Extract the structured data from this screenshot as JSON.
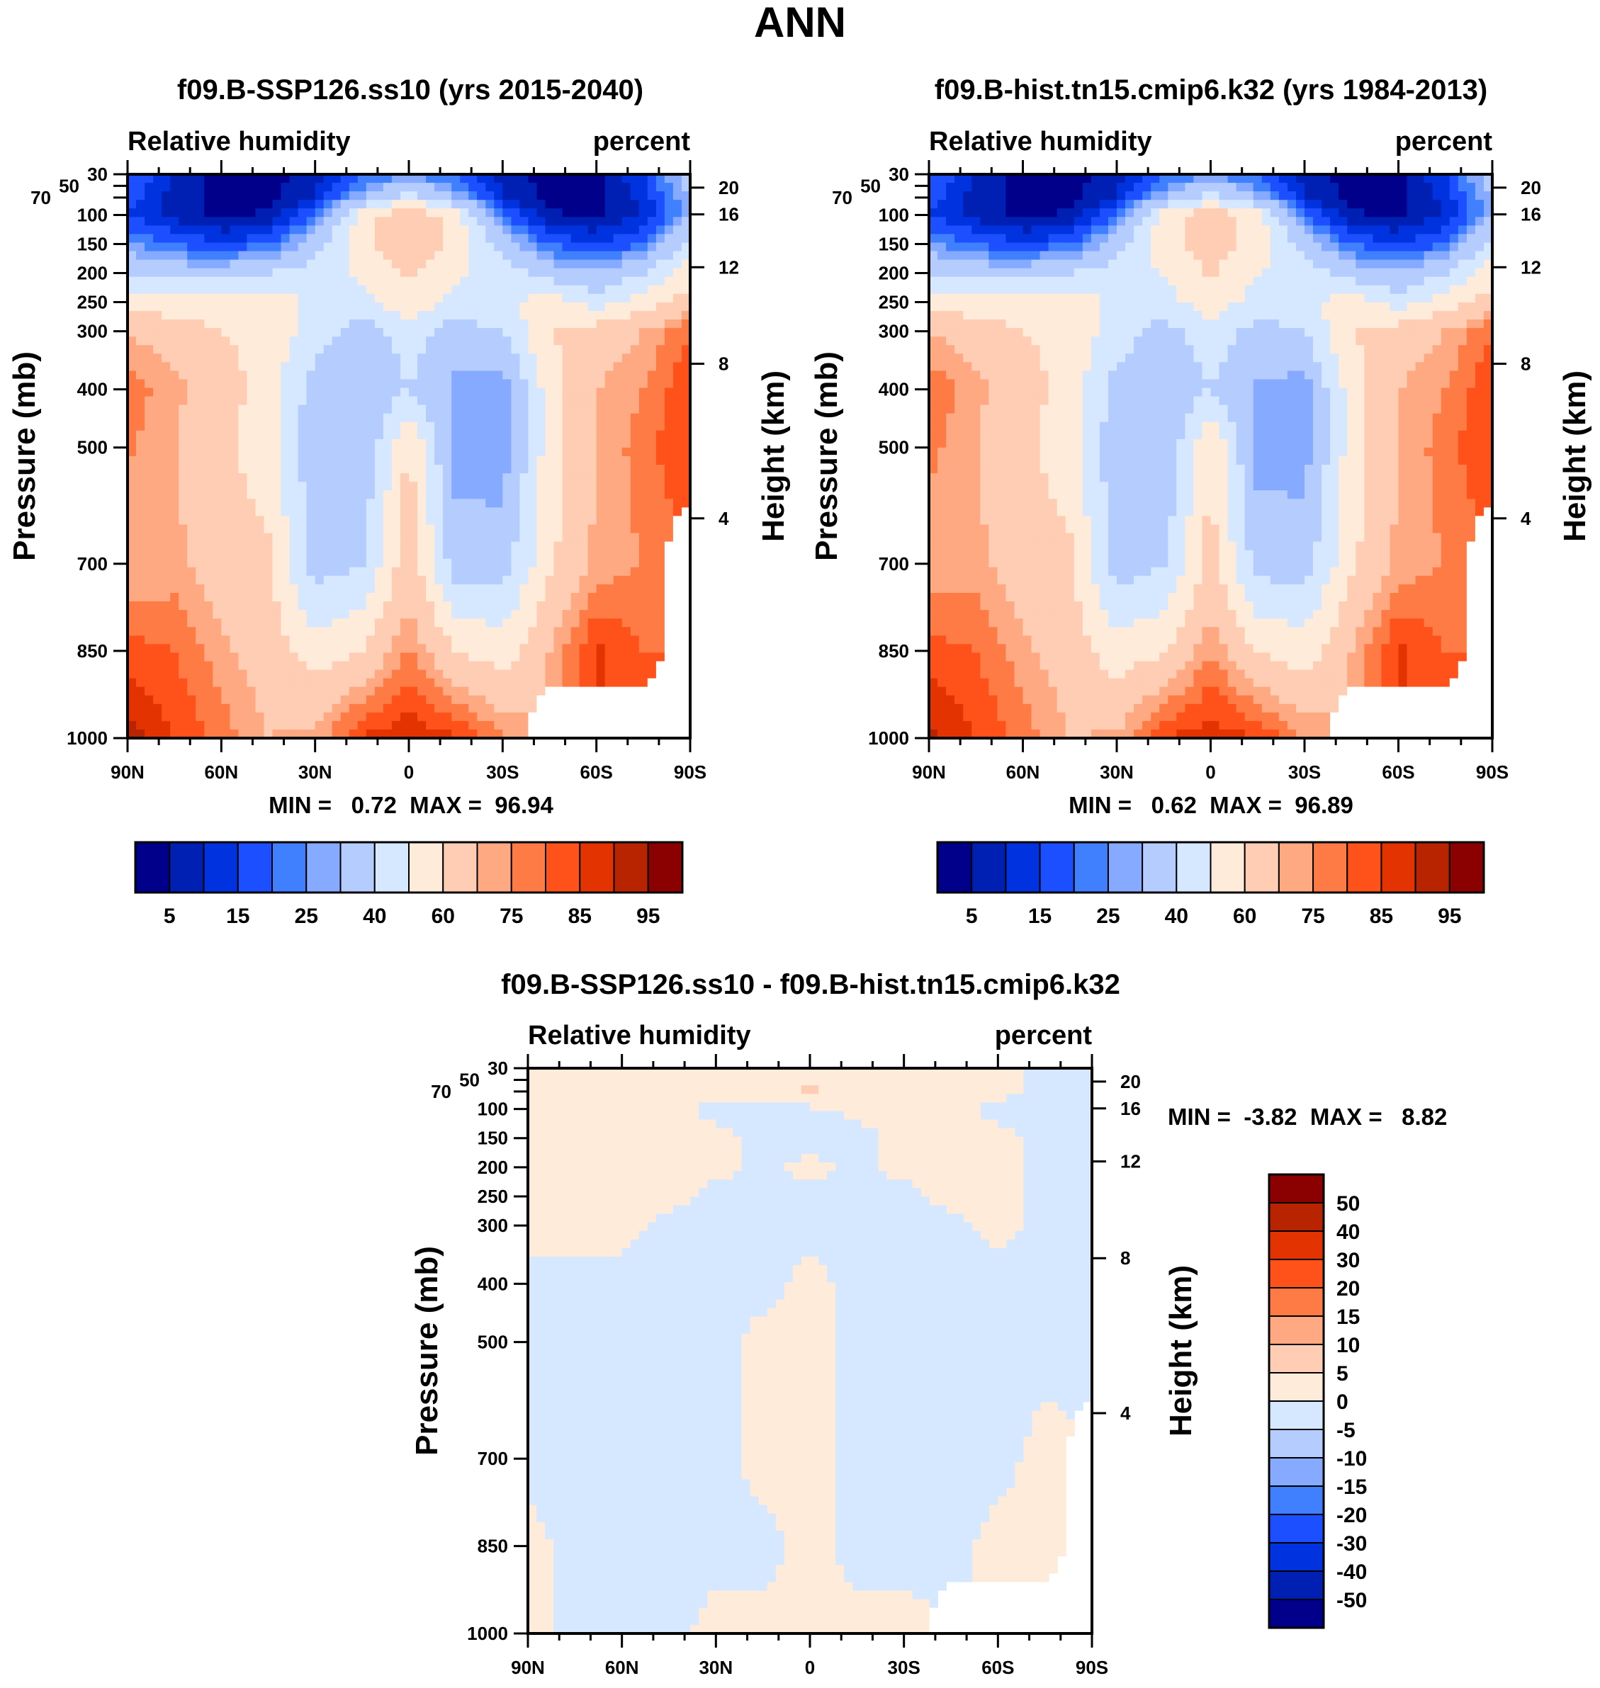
{
  "main_title": "ANN",
  "chart_data": [
    {
      "type": "heatmap",
      "title": "f09.B-SSP126.ss10 (yrs 2015-2040)",
      "left_string": "Relative humidity",
      "right_string": "percent",
      "xlabel": "",
      "ylabel": "Pressure (mb)",
      "ylabel_right": "Height (km)",
      "x_ticks": [
        "90N",
        "60N",
        "30N",
        "0",
        "30S",
        "60S",
        "90S"
      ],
      "y_ticks": [
        "30",
        "50",
        "70",
        "100",
        "150",
        "200",
        "250",
        "300",
        "400",
        "500",
        "700",
        "850",
        "1000"
      ],
      "y_ticks_right": [
        "20",
        "16",
        "12",
        "8",
        "4"
      ],
      "min_max": "MIN =   0.72  MAX =  96.94",
      "levels": [
        5,
        10,
        15,
        20,
        25,
        30,
        40,
        50,
        60,
        70,
        75,
        80,
        85,
        90,
        95
      ],
      "colorbar_labels": [
        "5",
        "15",
        "25",
        "40",
        "60",
        "75",
        "85",
        "95"
      ],
      "lat": [
        90,
        75,
        60,
        45,
        30,
        15,
        0,
        -15,
        -30,
        -45,
        -60,
        -75,
        -90
      ],
      "pressure": [
        30,
        70,
        100,
        150,
        200,
        250,
        300,
        400,
        500,
        700,
        850,
        1000
      ],
      "values": [
        [
          20,
          10,
          3,
          3,
          8,
          18,
          25,
          18,
          8,
          3,
          3,
          15,
          35
        ],
        [
          18,
          8,
          3,
          3,
          10,
          30,
          45,
          30,
          10,
          3,
          3,
          12,
          30
        ],
        [
          15,
          8,
          4,
          6,
          20,
          55,
          70,
          55,
          20,
          6,
          4,
          10,
          30
        ],
        [
          25,
          20,
          15,
          20,
          35,
          58,
          65,
          58,
          35,
          20,
          15,
          20,
          45
        ],
        [
          40,
          35,
          35,
          40,
          45,
          52,
          62,
          52,
          45,
          35,
          30,
          40,
          55
        ],
        [
          55,
          55,
          55,
          55,
          48,
          45,
          58,
          45,
          48,
          55,
          45,
          55,
          65
        ],
        [
          70,
          65,
          60,
          58,
          45,
          35,
          45,
          35,
          40,
          60,
          65,
          70,
          80
        ],
        [
          78,
          72,
          65,
          55,
          35,
          30,
          40,
          28,
          25,
          55,
          70,
          75,
          85
        ],
        [
          76,
          70,
          62,
          55,
          33,
          30,
          62,
          26,
          25,
          55,
          70,
          78,
          85
        ],
        [
          70,
          72,
          65,
          62,
          35,
          40,
          66,
          35,
          35,
          58,
          72,
          75,
          null
        ],
        [
          82,
          80,
          72,
          65,
          55,
          60,
          76,
          60,
          55,
          70,
          86,
          80,
          null
        ],
        [
          93,
          85,
          78,
          70,
          72,
          86,
          89,
          86,
          76,
          null,
          null,
          null,
          null
        ]
      ]
    },
    {
      "type": "heatmap",
      "title": "f09.B-hist.tn15.cmip6.k32 (yrs 1984-2013)",
      "left_string": "Relative humidity",
      "right_string": "percent",
      "xlabel": "",
      "ylabel": "Pressure (mb)",
      "ylabel_right": "Height (km)",
      "x_ticks": [
        "90N",
        "60N",
        "30N",
        "0",
        "30S",
        "60S",
        "90S"
      ],
      "y_ticks": [
        "30",
        "50",
        "70",
        "100",
        "150",
        "200",
        "250",
        "300",
        "400",
        "500",
        "700",
        "850",
        "1000"
      ],
      "y_ticks_right": [
        "20",
        "16",
        "12",
        "8",
        "4"
      ],
      "min_max": "MIN =   0.62  MAX =  96.89",
      "levels": [
        5,
        10,
        15,
        20,
        25,
        30,
        40,
        50,
        60,
        70,
        75,
        80,
        85,
        90,
        95
      ],
      "colorbar_labels": [
        "5",
        "15",
        "25",
        "40",
        "60",
        "75",
        "85",
        "95"
      ],
      "lat": [
        90,
        75,
        60,
        45,
        30,
        15,
        0,
        -15,
        -30,
        -45,
        -60,
        -75,
        -90
      ],
      "pressure": [
        30,
        70,
        100,
        150,
        200,
        250,
        300,
        400,
        500,
        700,
        850,
        1000
      ],
      "values": [
        [
          20,
          10,
          3,
          3,
          8,
          18,
          25,
          18,
          8,
          3,
          3,
          15,
          35
        ],
        [
          18,
          8,
          3,
          3,
          10,
          30,
          44,
          30,
          10,
          3,
          3,
          12,
          30
        ],
        [
          15,
          8,
          4,
          6,
          20,
          55,
          68,
          55,
          20,
          6,
          4,
          10,
          30
        ],
        [
          25,
          20,
          15,
          20,
          35,
          57,
          64,
          57,
          35,
          20,
          15,
          20,
          45
        ],
        [
          40,
          35,
          35,
          40,
          45,
          51,
          61,
          51,
          45,
          35,
          30,
          40,
          55
        ],
        [
          55,
          55,
          55,
          55,
          48,
          45,
          57,
          45,
          48,
          55,
          45,
          55,
          65
        ],
        [
          70,
          65,
          60,
          58,
          45,
          36,
          46,
          36,
          40,
          60,
          65,
          70,
          80
        ],
        [
          79,
          72,
          65,
          55,
          36,
          31,
          40,
          29,
          26,
          55,
          70,
          75,
          85
        ],
        [
          77,
          70,
          62,
          55,
          33,
          30,
          60,
          27,
          26,
          55,
          70,
          78,
          85
        ],
        [
          71,
          72,
          65,
          62,
          35,
          39,
          64,
          36,
          35,
          58,
          72,
          75,
          null
        ],
        [
          82,
          80,
          72,
          65,
          55,
          59,
          75,
          60,
          55,
          70,
          86,
          80,
          null
        ],
        [
          92,
          85,
          78,
          70,
          71,
          85,
          88,
          85,
          75,
          null,
          null,
          null,
          null
        ]
      ]
    },
    {
      "type": "heatmap",
      "title": "f09.B-SSP126.ss10 - f09.B-hist.tn15.cmip6.k32",
      "left_string": "Relative humidity",
      "right_string": "percent",
      "xlabel": "",
      "ylabel": "Pressure (mb)",
      "ylabel_right": "Height (km)",
      "x_ticks": [
        "90N",
        "60N",
        "30N",
        "0",
        "30S",
        "60S",
        "90S"
      ],
      "y_ticks": [
        "30",
        "50",
        "70",
        "100",
        "150",
        "200",
        "250",
        "300",
        "400",
        "500",
        "700",
        "850",
        "1000"
      ],
      "y_ticks_right": [
        "20",
        "16",
        "12",
        "8",
        "4"
      ],
      "min_max": "MIN =  -3.82  MAX =   8.82",
      "levels": [
        -50,
        -40,
        -30,
        -20,
        -15,
        -10,
        -5,
        0,
        5,
        10,
        15,
        20,
        30,
        40,
        50
      ],
      "colorbar_labels": [
        "-50",
        "-40",
        "-30",
        "-20",
        "-15",
        "-10",
        "-5",
        "0",
        "5",
        "10",
        "15",
        "20",
        "30",
        "40",
        "50"
      ],
      "lat": [
        90,
        75,
        60,
        45,
        30,
        15,
        0,
        -15,
        -30,
        -45,
        -60,
        -75,
        -90
      ],
      "pressure": [
        30,
        70,
        100,
        150,
        200,
        250,
        300,
        400,
        500,
        700,
        850,
        1000
      ],
      "values": [
        [
          1,
          1,
          1,
          1,
          1,
          1,
          1,
          1,
          1,
          1,
          1,
          -1,
          -1
        ],
        [
          1,
          1,
          1,
          1,
          1,
          1,
          6,
          1,
          1,
          1,
          1,
          -1,
          -1
        ],
        [
          1,
          1,
          1,
          1,
          -1,
          -1,
          -1,
          1,
          1,
          1,
          -1,
          -1,
          -1
        ],
        [
          1,
          1,
          1,
          1,
          1,
          -1,
          -1,
          -1,
          1,
          1,
          1,
          -1,
          -1
        ],
        [
          1,
          1,
          1,
          1,
          1,
          -1,
          1,
          -1,
          1,
          1,
          1,
          -1,
          -1
        ],
        [
          1,
          1,
          1,
          1,
          -1,
          -1,
          -1,
          -1,
          -1,
          1,
          1,
          -1,
          -1
        ],
        [
          1,
          1,
          1,
          -1,
          -1,
          -1,
          -1,
          -1,
          -1,
          -1,
          1,
          -1,
          -1
        ],
        [
          -1,
          -1,
          -1,
          -1,
          -1,
          -1,
          1,
          -1,
          -1,
          -1,
          -1,
          -1,
          -1
        ],
        [
          -1,
          -1,
          -1,
          -1,
          -1,
          1,
          1,
          -1,
          -1,
          -1,
          -1,
          -1,
          -1
        ],
        [
          -1,
          -1,
          -1,
          -1,
          -1,
          1,
          1,
          -1,
          -1,
          -1,
          -1,
          1,
          null
        ],
        [
          1,
          -1,
          -1,
          -1,
          -1,
          -1,
          1,
          -1,
          -1,
          -1,
          1,
          1,
          null
        ],
        [
          1,
          -1,
          -1,
          -1,
          1,
          1,
          1,
          1,
          1,
          null,
          null,
          null,
          null
        ]
      ]
    }
  ],
  "colors": [
    "#00008b",
    "#0020b4",
    "#0033e0",
    "#1c4fff",
    "#4080ff",
    "#86aaff",
    "#b4ccff",
    "#d6e8ff",
    "#ffebd9",
    "#ffcdb3",
    "#ffa983",
    "#ff7b45",
    "#ff521b",
    "#e33300",
    "#b82300",
    "#8b0000"
  ]
}
